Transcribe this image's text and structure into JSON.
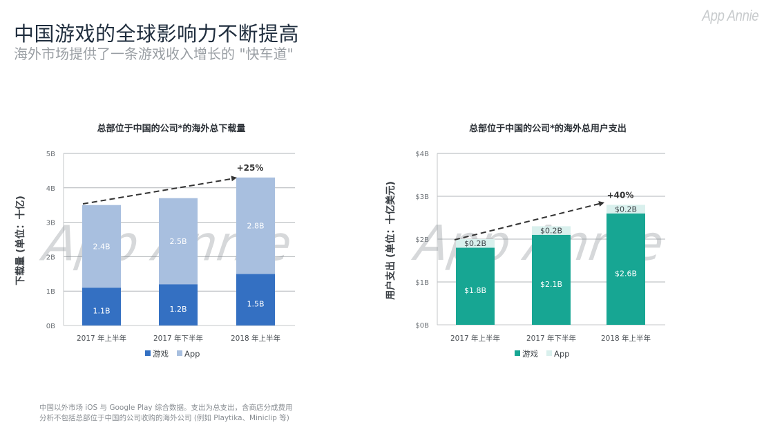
{
  "header": {
    "title": "中国游戏的全球影响力不断提高",
    "subtitle": "海外市场提供了一条游戏收入增长的 \"快车道\"",
    "logo": "App Annie",
    "watermark": "App Annie"
  },
  "footnote": {
    "line1": "中国以外市场 iOS 与 Google Play 综合数据。支出为总支出，含商店分成费用",
    "line2": "分析不包括总部位于中国的公司收购的海外公司 (例如 Playtika、Miniclip 等)"
  },
  "colors": {
    "games_downloads": "#3470c2",
    "app_downloads": "#a8bfdf",
    "games_spend": "#17a693",
    "app_spend": "#d9f0ed",
    "gridline": "#b0b4b8",
    "axis_text": "#6b7075"
  },
  "chart_data": [
    {
      "type": "bar",
      "stacked": true,
      "title": "总部位于中国的公司*的海外总下载量",
      "ylabel": "下载量 (单位：十亿)",
      "xlabel": "",
      "categories": [
        "2017 年上半年",
        "2017 年下半年",
        "2018 年上半年"
      ],
      "series": [
        {
          "name": "游戏",
          "values": [
            1.1,
            1.2,
            1.5
          ],
          "labels": [
            "1.1B",
            "1.2B",
            "1.5B"
          ]
        },
        {
          "name": "App",
          "values": [
            2.4,
            2.5,
            2.8
          ],
          "labels": [
            "2.4B",
            "2.5B",
            "2.8B"
          ]
        }
      ],
      "ylim": [
        0,
        5
      ],
      "yticks": [
        0,
        1,
        2,
        3,
        4,
        5
      ],
      "ytick_labels": [
        "0B",
        "1B",
        "2B",
        "3B",
        "4B",
        "5B"
      ],
      "grid": true,
      "legend": "bottom",
      "annotation": {
        "text": "+25%",
        "type": "dashed-arrow",
        "from_category": 0,
        "to_category": 2
      }
    },
    {
      "type": "bar",
      "stacked": true,
      "title": "总部位于中国的公司*的海外总用户支出",
      "ylabel": "用户支出 (单位：十亿美元)",
      "xlabel": "",
      "categories": [
        "2017 年上半年",
        "2017 年下半年",
        "2018 年上半年"
      ],
      "series": [
        {
          "name": "游戏",
          "values": [
            1.8,
            2.1,
            2.6
          ],
          "labels": [
            "$1.8B",
            "$2.1B",
            "$2.6B"
          ]
        },
        {
          "name": "App",
          "values": [
            0.2,
            0.2,
            0.2
          ],
          "labels": [
            "$0.2B",
            "$0.2B",
            "$0.2B"
          ]
        }
      ],
      "ylim": [
        0,
        4
      ],
      "yticks": [
        0,
        1,
        2,
        3,
        4
      ],
      "ytick_labels": [
        "$0B",
        "$1B",
        "$2B",
        "$3B",
        "$4B"
      ],
      "grid": true,
      "legend": "bottom",
      "annotation": {
        "text": "+40%",
        "type": "dashed-arrow",
        "from_category": 0,
        "to_category": 2
      }
    }
  ]
}
